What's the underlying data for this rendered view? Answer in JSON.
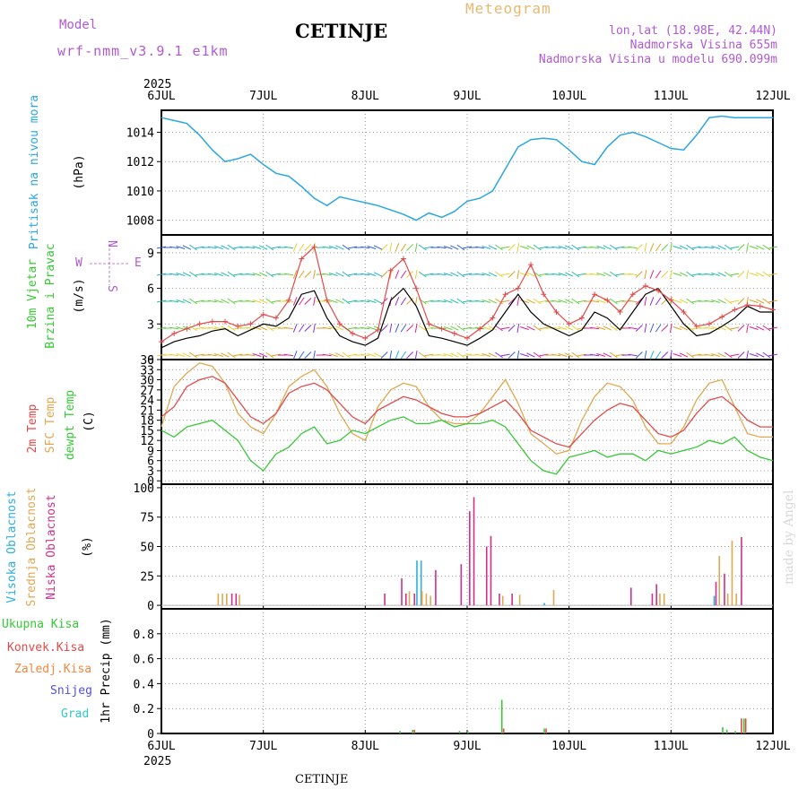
{
  "header": {
    "model_label": "Model",
    "model_name": "wrf-nmm_v3.9.1 e1km",
    "station": "CETINJE",
    "product": "Meteogram",
    "lonlat": "lon,lat (18.98E, 42.44N)",
    "elevation": "Nadmorska Visina 655m",
    "model_elevation": "Nadmorska Visina u modelu 690.099m"
  },
  "footer": {
    "station": "CETINJE",
    "credit": "made by Angel"
  },
  "colors": {
    "pressure": "#2ba6e2",
    "temp2m": "#e24a4a",
    "sfc_temp": "#e0a850",
    "dewpt": "#35c935",
    "high_cloud": "#2bb0e0",
    "mid_cloud": "#e0a850",
    "low_cloud": "#d0308c",
    "total_precip": "#35c935",
    "conv_precip": "#e24a4a",
    "frozen_precip": "#f08840",
    "snow": "#5050e0",
    "hail": "#30c8c8",
    "wind_speed": "#000000",
    "gust": "#e24a4a"
  },
  "time_axis": {
    "year": "2025",
    "ticks": [
      "6JUL",
      "7JUL",
      "8JUL",
      "9JUL",
      "10JUL",
      "11JUL",
      "12JUL"
    ]
  },
  "chart_data": [
    {
      "type": "line",
      "id": "pressure",
      "ylabel_lines": [
        "Pritisak na nivou mora",
        "(hPa)"
      ],
      "ylim": [
        1007,
        1015.5
      ],
      "yticks": [
        1008,
        1010,
        1012,
        1014
      ],
      "x_hours": [
        0,
        3,
        6,
        9,
        12,
        15,
        18,
        21,
        24,
        27,
        30,
        33,
        36,
        39,
        42,
        45,
        48,
        51,
        54,
        57,
        60,
        63,
        66,
        69,
        72,
        75,
        78,
        81,
        84,
        87,
        90,
        93,
        96,
        99,
        102,
        105,
        108,
        111,
        114,
        117,
        120,
        123,
        126,
        129,
        132,
        135,
        138,
        141,
        144
      ],
      "values": [
        1015,
        1014.8,
        1014.6,
        1013.8,
        1012.8,
        1012,
        1012.2,
        1012.5,
        1011.8,
        1011.2,
        1011,
        1010.3,
        1009.5,
        1009,
        1009.6,
        1009.4,
        1009.2,
        1009,
        1008.7,
        1008.4,
        1008,
        1008.5,
        1008.2,
        1008.6,
        1009.3,
        1009.5,
        1010,
        1011.5,
        1013,
        1013.5,
        1013.6,
        1013.5,
        1012.8,
        1012,
        1011.8,
        1013,
        1013.8,
        1014,
        1013.7,
        1013.3,
        1012.9,
        1012.8,
        1013.8,
        1015,
        1015.1,
        1015,
        1015,
        1015,
        1015
      ]
    },
    {
      "type": "line",
      "id": "wind",
      "ylabel_lines": [
        "10m Vjetar",
        "Brzina i Pravac",
        "(m/s)"
      ],
      "direction_legend": [
        "N",
        "W",
        "E",
        "S"
      ],
      "ylim": [
        0,
        10.5
      ],
      "yticks": [
        0,
        3,
        6,
        9
      ],
      "series": [
        {
          "key": "speed",
          "values": [
            1,
            1.5,
            1.8,
            2,
            2.4,
            2.6,
            2,
            2.5,
            3,
            2.8,
            3.5,
            5.5,
            5.8,
            3.5,
            2,
            1.5,
            1.2,
            1.8,
            5,
            6,
            4.5,
            2,
            1.8,
            1.5,
            1.2,
            1.8,
            2.5,
            4,
            5.5,
            4,
            3,
            2.5,
            2,
            2.5,
            4,
            3.5,
            2.5,
            4,
            5.5,
            6,
            4.5,
            3,
            2,
            2.2,
            2.8,
            3.5,
            4.5,
            4,
            4
          ]
        },
        {
          "key": "gust",
          "values": [
            1.5,
            2.2,
            2.6,
            3,
            3.2,
            3.2,
            2.8,
            3,
            3.8,
            3.5,
            5,
            8.5,
            9.5,
            5,
            3,
            2.2,
            1.8,
            2.5,
            7.5,
            8.5,
            6,
            3,
            2.6,
            2.2,
            1.8,
            2.6,
            3.5,
            5.5,
            6,
            8,
            5.5,
            4,
            3,
            3.5,
            5.5,
            5,
            4,
            5.5,
            6.2,
            5.8,
            5,
            4,
            2.8,
            3,
            3.6,
            4.2,
            4.6,
            4.5,
            4.2
          ]
        }
      ],
      "x_hours": [
        0,
        3,
        6,
        9,
        12,
        15,
        18,
        21,
        24,
        27,
        30,
        33,
        36,
        39,
        42,
        45,
        48,
        51,
        54,
        57,
        60,
        63,
        66,
        69,
        72,
        75,
        78,
        81,
        84,
        87,
        90,
        93,
        96,
        99,
        102,
        105,
        108,
        111,
        114,
        117,
        120,
        123,
        126,
        129,
        132,
        135,
        138,
        141,
        144
      ]
    },
    {
      "type": "line",
      "id": "temperature",
      "ylabel_lines": [
        "2m Temp",
        "SFC Temp",
        "dewpt Temp",
        "(C)"
      ],
      "ylim": [
        -1,
        36
      ],
      "yticks": [
        0,
        3,
        6,
        9,
        12,
        15,
        18,
        21,
        24,
        27,
        30,
        33,
        36
      ],
      "x_hours": [
        0,
        3,
        6,
        9,
        12,
        15,
        18,
        21,
        24,
        27,
        30,
        33,
        36,
        39,
        42,
        45,
        48,
        51,
        54,
        57,
        60,
        63,
        66,
        69,
        72,
        75,
        78,
        81,
        84,
        87,
        90,
        93,
        96,
        99,
        102,
        105,
        108,
        111,
        114,
        117,
        120,
        123,
        126,
        129,
        132,
        135,
        138,
        141,
        144
      ],
      "series": [
        {
          "key": "t2m",
          "values": [
            19,
            22,
            28,
            30,
            31,
            29,
            24,
            19,
            17,
            20,
            26,
            28,
            29,
            27,
            23,
            19,
            17,
            21,
            23,
            25,
            24,
            22,
            20,
            19,
            19,
            20,
            22,
            24,
            20,
            15,
            13,
            11,
            10,
            14,
            18,
            21,
            23,
            22,
            18,
            14,
            13,
            15,
            20,
            24,
            25,
            22,
            18,
            16,
            16
          ]
        },
        {
          "key": "sfc",
          "values": [
            16,
            28,
            32,
            35,
            34,
            29,
            20,
            16,
            14,
            20,
            28,
            31,
            33,
            28,
            20,
            14,
            12,
            22,
            27,
            29,
            28,
            22,
            18,
            17,
            17,
            20,
            25,
            30,
            23,
            14,
            11,
            8,
            9,
            18,
            25,
            29,
            28,
            24,
            16,
            11,
            11,
            16,
            24,
            29,
            30,
            22,
            14,
            13,
            13
          ]
        },
        {
          "key": "dewpt",
          "values": [
            15,
            13,
            16,
            17,
            18,
            15,
            12,
            6,
            3,
            8,
            10,
            14,
            16,
            11,
            12,
            15,
            14,
            16,
            18,
            19,
            17,
            17,
            18,
            16,
            17,
            17,
            18,
            16,
            11,
            6,
            3,
            2,
            7,
            8,
            9,
            7,
            8,
            8,
            6,
            9,
            8,
            9,
            10,
            12,
            11,
            13,
            9,
            7,
            6
          ]
        }
      ]
    },
    {
      "type": "bar",
      "id": "cloud",
      "ylabel_lines": [
        "Visoka Oblacnost",
        "Srednja Oblacnost",
        "Niska Oblacnost",
        "(%)"
      ],
      "ylim": [
        -3,
        103
      ],
      "yticks": [
        0,
        25,
        50,
        75,
        100
      ],
      "series": [
        {
          "key": "high",
          "bars": [
            [
              60,
              38
            ],
            [
              61,
              38
            ],
            [
              90,
              2
            ],
            [
              130,
              8
            ]
          ]
        },
        {
          "key": "mid",
          "bars": [
            [
              13,
              10
            ],
            [
              14,
              10
            ],
            [
              15,
              10
            ],
            [
              18,
              9
            ],
            [
              58,
              12
            ],
            [
              61,
              12
            ],
            [
              62,
              10
            ],
            [
              63,
              8
            ],
            [
              80,
              8
            ],
            [
              84,
              9
            ],
            [
              92,
              13
            ],
            [
              117,
              10
            ],
            [
              118,
              10
            ],
            [
              131,
              42
            ],
            [
              133,
              10
            ],
            [
              134,
              55
            ],
            [
              135,
              10
            ]
          ]
        },
        {
          "key": "low",
          "bars": [
            [
              16,
              10
            ],
            [
              17,
              10
            ],
            [
              52,
              10
            ],
            [
              56,
              23
            ],
            [
              57,
              10
            ],
            [
              59,
              10
            ],
            [
              64,
              30
            ],
            [
              70,
              35
            ],
            [
              72,
              80
            ],
            [
              73,
              92
            ],
            [
              76,
              50
            ],
            [
              77,
              59
            ],
            [
              79,
              10
            ],
            [
              82,
              10
            ],
            [
              110,
              15
            ],
            [
              115,
              10
            ],
            [
              116,
              18
            ],
            [
              130,
              20
            ],
            [
              132,
              27
            ],
            [
              136,
              58
            ]
          ]
        }
      ]
    },
    {
      "type": "bar",
      "id": "precip",
      "ylabel_lines": [
        "1hr Precip (mm)"
      ],
      "legend": [
        "Ukupna Kisa",
        "Konvek.Kisa",
        "Zaledj.Kisa",
        "Snijeg",
        "Grad"
      ],
      "ylim": [
        0,
        1.0
      ],
      "yticks": [
        0,
        0.2,
        0.4,
        0.6,
        0.8
      ],
      "series": [
        {
          "key": "total",
          "bars": [
            [
              56,
              0.02
            ],
            [
              59,
              0.03
            ],
            [
              70,
              0.02
            ],
            [
              72,
              0.02
            ],
            [
              80,
              0.27
            ],
            [
              90,
              0.04
            ],
            [
              132,
              0.05
            ],
            [
              133,
              0.03
            ],
            [
              135,
              0.02
            ],
            [
              137,
              0.12
            ]
          ]
        },
        {
          "key": "conv",
          "bars": [
            [
              59,
              0.03
            ],
            [
              80,
              0.04
            ],
            [
              90,
              0.04
            ],
            [
              136,
              0.12
            ],
            [
              137,
              0.12
            ]
          ]
        }
      ]
    }
  ]
}
